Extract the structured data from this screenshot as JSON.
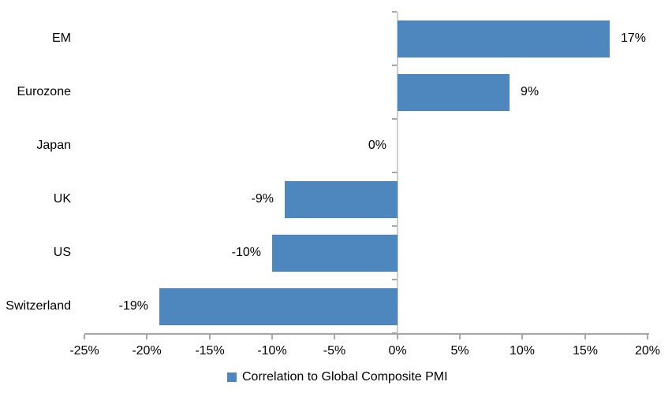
{
  "chart_data": {
    "type": "bar",
    "orientation": "horizontal",
    "title": "",
    "categories": [
      "EM",
      "Eurozone",
      "Japan",
      "UK",
      "US",
      "Switzerland"
    ],
    "values": [
      17,
      9,
      0,
      -9,
      -10,
      -19
    ],
    "value_labels": [
      "17%",
      "9%",
      "0%",
      "-9%",
      "-10%",
      "-19%"
    ],
    "xlim": [
      -25,
      20
    ],
    "x_tick_values": [
      -25,
      -20,
      -15,
      -10,
      -5,
      0,
      5,
      10,
      15,
      20
    ],
    "x_tick_labels": [
      "-25%",
      "-20%",
      "-15%",
      "-10%",
      "-5%",
      "0%",
      "5%",
      "10%",
      "15%",
      "20%"
    ],
    "grid": false,
    "legend": {
      "label": "Correlation to Global Composite PMI",
      "position": "bottom"
    },
    "colors": {
      "bar": "#4E86BE",
      "axis": "#A6A6A6",
      "zero_line": "#C9CDD1",
      "text": "#000000",
      "background": "#FFFFFF"
    }
  }
}
